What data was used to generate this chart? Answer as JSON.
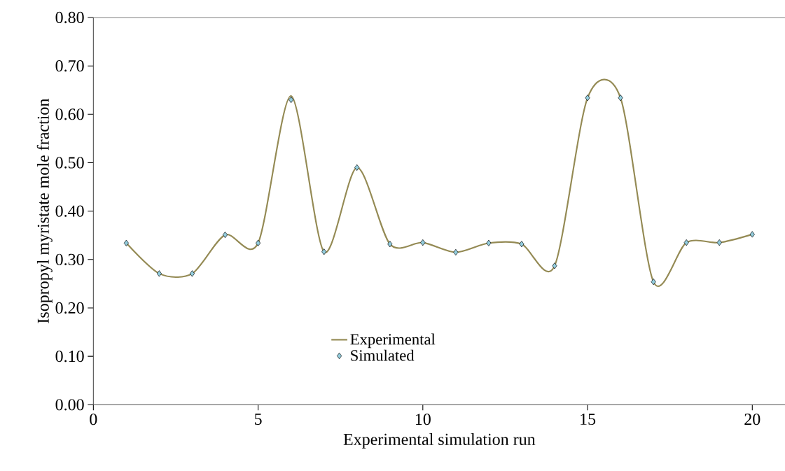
{
  "chart_data": {
    "type": "line",
    "xlabel": "Experimental simulation run",
    "ylabel": "Isopropyl myristate mole fraction",
    "x": [
      1,
      2,
      3,
      4,
      5,
      6,
      7,
      8,
      9,
      10,
      11,
      12,
      13,
      14,
      15,
      16,
      17,
      18,
      19,
      20
    ],
    "series": [
      {
        "name": "Experimental",
        "type": "line",
        "marker": "none",
        "line_style": "solid",
        "color": "#948a54",
        "values": [
          0.334,
          0.271,
          0.271,
          0.351,
          0.334,
          0.638,
          0.316,
          0.49,
          0.332,
          0.335,
          0.315,
          0.334,
          0.332,
          0.287,
          0.634,
          0.634,
          0.254,
          0.335,
          0.335,
          0.352
        ]
      },
      {
        "name": "Simulated",
        "type": "scatter",
        "marker": "diamond",
        "color": "#93cddd",
        "values": [
          0.334,
          0.271,
          0.271,
          0.351,
          0.334,
          0.63,
          0.316,
          0.49,
          0.332,
          0.335,
          0.315,
          0.334,
          0.332,
          0.287,
          0.634,
          0.634,
          0.254,
          0.335,
          0.335,
          0.352
        ]
      }
    ],
    "xlim": [
      0,
      21
    ],
    "xticks": [
      0,
      5,
      10,
      15,
      20
    ],
    "ylim": [
      0,
      0.8
    ],
    "yticks": [
      {
        "value": 0,
        "label": "0.00"
      },
      {
        "value": 0.1,
        "label": "0.10"
      },
      {
        "value": 0.2,
        "label": "0.20"
      },
      {
        "value": 0.3,
        "label": "0.30"
      },
      {
        "value": 0.4,
        "label": "0.40"
      },
      {
        "value": 0.5,
        "label": "0.50"
      },
      {
        "value": 0.6,
        "label": "0.60"
      },
      {
        "value": 0.7,
        "label": "0.70"
      },
      {
        "value": 0.8,
        "label": "0.80"
      }
    ],
    "grid": false,
    "legend": "bottom"
  }
}
